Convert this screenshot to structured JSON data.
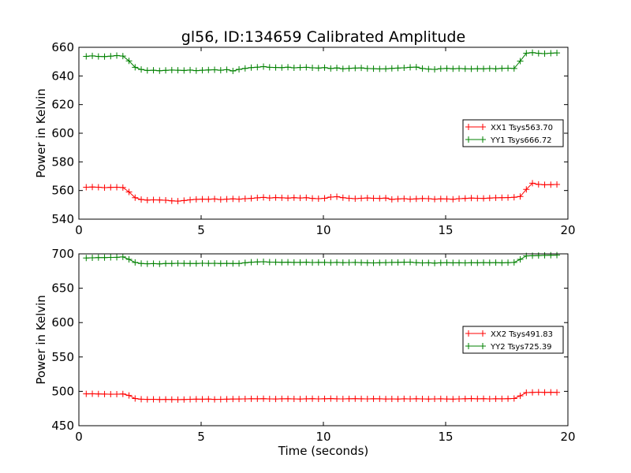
{
  "figure": {
    "title": "gl56, ID:134659 Calibrated Amplitude",
    "xlabel": "Time (seconds)"
  },
  "chart_data": [
    {
      "type": "line",
      "title": "gl56, ID:134659 Calibrated Amplitude",
      "xlabel": "",
      "ylabel": "Power in Kelvin",
      "xlim": [
        0,
        20
      ],
      "ylim": [
        540,
        660
      ],
      "xticks": [
        0,
        5,
        10,
        15,
        20
      ],
      "yticks": [
        540,
        560,
        580,
        600,
        620,
        640,
        660
      ],
      "grid": false,
      "legend_position": "right",
      "series": [
        {
          "name": "XX1 Tsys563.70",
          "color": "#ff0000",
          "marker": "plus",
          "x": [
            0.3,
            0.55,
            0.8,
            1.05,
            1.3,
            1.55,
            1.8,
            2.05,
            2.3,
            2.55,
            2.8,
            3.05,
            3.3,
            3.55,
            3.8,
            4.05,
            4.3,
            4.55,
            4.8,
            5.05,
            5.3,
            5.55,
            5.8,
            6.05,
            6.3,
            6.55,
            6.8,
            7.05,
            7.3,
            7.55,
            7.8,
            8.05,
            8.3,
            8.55,
            8.8,
            9.05,
            9.3,
            9.55,
            9.8,
            10.05,
            10.3,
            10.55,
            10.8,
            11.05,
            11.3,
            11.55,
            11.8,
            12.05,
            12.3,
            12.55,
            12.8,
            13.05,
            13.3,
            13.55,
            13.8,
            14.05,
            14.3,
            14.55,
            14.8,
            15.05,
            15.3,
            15.55,
            15.8,
            16.05,
            16.3,
            16.55,
            16.8,
            17.05,
            17.3,
            17.55,
            17.8,
            18.05,
            18.3,
            18.55,
            18.8,
            19.05,
            19.3,
            19.55
          ],
          "values": [
            562.3,
            562.4,
            562.3,
            562.0,
            562.2,
            562.3,
            562.1,
            559.0,
            555.0,
            553.7,
            553.3,
            553.5,
            553.4,
            553.2,
            552.8,
            552.6,
            553.0,
            553.5,
            553.8,
            554.0,
            553.9,
            554.1,
            553.7,
            554.0,
            554.2,
            554.0,
            554.3,
            554.5,
            554.9,
            555.2,
            554.8,
            555.1,
            554.9,
            554.7,
            555.0,
            554.8,
            555.0,
            554.5,
            554.3,
            554.6,
            555.4,
            555.7,
            555.0,
            554.6,
            554.3,
            554.6,
            554.8,
            554.6,
            554.5,
            554.7,
            553.8,
            554.1,
            554.3,
            554.0,
            554.2,
            554.4,
            554.3,
            554.0,
            554.2,
            554.1,
            553.9,
            554.3,
            554.5,
            554.7,
            554.6,
            554.5,
            554.7,
            554.9,
            555.0,
            555.1,
            555.3,
            555.8,
            560.8,
            565.1,
            564.3,
            564.0,
            564.1,
            564.2
          ]
        },
        {
          "name": "YY1 Tsys666.72",
          "color": "#008000",
          "marker": "plus",
          "x": [
            0.3,
            0.55,
            0.8,
            1.05,
            1.3,
            1.55,
            1.8,
            2.05,
            2.3,
            2.55,
            2.8,
            3.05,
            3.3,
            3.55,
            3.8,
            4.05,
            4.3,
            4.55,
            4.8,
            5.05,
            5.3,
            5.55,
            5.8,
            6.05,
            6.3,
            6.55,
            6.8,
            7.05,
            7.3,
            7.55,
            7.8,
            8.05,
            8.3,
            8.55,
            8.8,
            9.05,
            9.3,
            9.55,
            9.8,
            10.05,
            10.3,
            10.55,
            10.8,
            11.05,
            11.3,
            11.55,
            11.8,
            12.05,
            12.3,
            12.55,
            12.8,
            13.05,
            13.3,
            13.55,
            13.8,
            14.05,
            14.3,
            14.55,
            14.8,
            15.05,
            15.3,
            15.55,
            15.8,
            16.05,
            16.3,
            16.55,
            16.8,
            17.05,
            17.3,
            17.55,
            17.8,
            18.05,
            18.3,
            18.55,
            18.8,
            19.05,
            19.3,
            19.55
          ],
          "values": [
            653.7,
            654.0,
            653.6,
            653.5,
            653.8,
            654.2,
            653.9,
            650.5,
            646.0,
            644.5,
            643.8,
            644.0,
            643.6,
            643.9,
            644.1,
            644.0,
            643.8,
            644.1,
            643.7,
            644.0,
            644.2,
            644.3,
            644.0,
            644.4,
            643.5,
            644.6,
            645.3,
            645.8,
            646.1,
            646.5,
            646.0,
            645.9,
            645.8,
            646.1,
            645.7,
            645.9,
            646.0,
            645.7,
            645.5,
            645.8,
            645.2,
            645.6,
            645.0,
            645.3,
            645.5,
            645.6,
            645.2,
            645.1,
            644.9,
            645.0,
            645.3,
            645.5,
            645.7,
            646.0,
            646.2,
            645.2,
            644.8,
            644.6,
            645.1,
            645.3,
            645.0,
            645.2,
            645.0,
            644.9,
            645.1,
            645.0,
            645.2,
            645.0,
            645.3,
            645.4,
            645.2,
            650.4,
            655.9,
            656.3,
            655.8,
            655.6,
            655.9,
            656.1
          ]
        }
      ]
    },
    {
      "type": "line",
      "title": "",
      "xlabel": "Time (seconds)",
      "ylabel": "Power in Kelvin",
      "xlim": [
        0,
        20
      ],
      "ylim": [
        450,
        700
      ],
      "xticks": [
        0,
        5,
        10,
        15,
        20
      ],
      "yticks": [
        450,
        500,
        550,
        600,
        650,
        700
      ],
      "grid": false,
      "legend_position": "right",
      "series": [
        {
          "name": "XX2 Tsys491.83",
          "color": "#ff0000",
          "marker": "plus",
          "x": [
            0.3,
            0.55,
            0.8,
            1.05,
            1.3,
            1.55,
            1.8,
            2.05,
            2.3,
            2.55,
            2.8,
            3.05,
            3.3,
            3.55,
            3.8,
            4.05,
            4.3,
            4.55,
            4.8,
            5.05,
            5.3,
            5.55,
            5.8,
            6.05,
            6.3,
            6.55,
            6.8,
            7.05,
            7.3,
            7.55,
            7.8,
            8.05,
            8.3,
            8.55,
            8.8,
            9.05,
            9.3,
            9.55,
            9.8,
            10.05,
            10.3,
            10.55,
            10.8,
            11.05,
            11.3,
            11.55,
            11.8,
            12.05,
            12.3,
            12.55,
            12.8,
            13.05,
            13.3,
            13.55,
            13.8,
            14.05,
            14.3,
            14.55,
            14.8,
            15.05,
            15.3,
            15.55,
            15.8,
            16.05,
            16.3,
            16.55,
            16.8,
            17.05,
            17.3,
            17.55,
            17.8,
            18.05,
            18.3,
            18.55,
            18.8,
            19.05,
            19.3,
            19.55
          ],
          "values": [
            496.3,
            496.5,
            496.2,
            496.0,
            495.8,
            495.9,
            496.1,
            494.0,
            489.5,
            488.5,
            488.3,
            488.4,
            488.2,
            488.3,
            488.1,
            488.0,
            488.2,
            488.4,
            488.6,
            488.5,
            488.7,
            488.3,
            488.4,
            488.6,
            488.8,
            488.9,
            489.0,
            489.2,
            489.1,
            489.3,
            489.0,
            488.9,
            489.1,
            489.2,
            489.0,
            488.8,
            489.1,
            489.3,
            489.0,
            489.2,
            489.4,
            489.1,
            489.0,
            489.2,
            489.3,
            489.1,
            489.0,
            489.2,
            489.1,
            488.9,
            489.0,
            488.8,
            489.1,
            489.0,
            489.2,
            489.0,
            488.8,
            489.0,
            489.1,
            488.9,
            488.7,
            489.0,
            489.2,
            489.4,
            489.1,
            489.3,
            489.0,
            489.2,
            489.1,
            489.3,
            489.6,
            493.5,
            498.2,
            498.5,
            498.7,
            498.4,
            498.6,
            498.5
          ]
        },
        {
          "name": "YY2 Tsys725.39",
          "color": "#008000",
          "marker": "plus",
          "x": [
            0.3,
            0.55,
            0.8,
            1.05,
            1.3,
            1.55,
            1.8,
            2.05,
            2.3,
            2.55,
            2.8,
            3.05,
            3.3,
            3.55,
            3.8,
            4.05,
            4.3,
            4.55,
            4.8,
            5.05,
            5.3,
            5.55,
            5.8,
            6.05,
            6.3,
            6.55,
            6.8,
            7.05,
            7.3,
            7.55,
            7.8,
            8.05,
            8.3,
            8.55,
            8.8,
            9.05,
            9.3,
            9.55,
            9.8,
            10.05,
            10.3,
            10.55,
            10.8,
            11.05,
            11.3,
            11.55,
            11.8,
            12.05,
            12.3,
            12.55,
            12.8,
            13.05,
            13.3,
            13.55,
            13.8,
            14.05,
            14.3,
            14.55,
            14.8,
            15.05,
            15.3,
            15.55,
            15.8,
            16.05,
            16.3,
            16.55,
            16.8,
            17.05,
            17.3,
            17.55,
            17.8,
            18.05,
            18.3,
            18.55,
            18.8,
            19.05,
            19.3,
            19.55
          ],
          "values": [
            694.0,
            694.3,
            694.5,
            694.6,
            694.8,
            695.0,
            695.5,
            692.0,
            687.5,
            686.0,
            685.5,
            685.8,
            685.4,
            685.9,
            686.0,
            686.2,
            686.1,
            685.9,
            686.0,
            686.3,
            686.1,
            686.2,
            686.0,
            686.1,
            685.9,
            686.0,
            687.0,
            687.8,
            688.2,
            688.5,
            688.0,
            687.9,
            687.7,
            687.8,
            687.5,
            687.6,
            687.8,
            687.4,
            687.6,
            687.5,
            687.3,
            687.6,
            687.2,
            687.4,
            687.5,
            687.3,
            687.0,
            686.8,
            687.1,
            687.3,
            687.5,
            687.6,
            687.8,
            688.0,
            687.2,
            686.8,
            687.0,
            686.5,
            687.0,
            687.2,
            686.9,
            687.0,
            686.8,
            687.1,
            687.0,
            687.2,
            687.1,
            687.3,
            687.0,
            687.2,
            687.5,
            692.0,
            697.0,
            697.3,
            697.5,
            697.8,
            698.0,
            698.2
          ]
        }
      ]
    }
  ]
}
